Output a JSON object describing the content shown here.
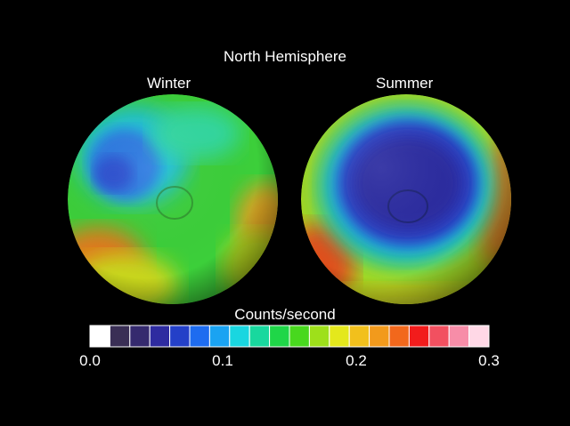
{
  "figure": {
    "title": "North Hemisphere",
    "panels": [
      {
        "label": "Winter"
      },
      {
        "label": "Summer"
      }
    ]
  },
  "colorbar": {
    "title": "Counts/second",
    "ticks": [
      "0.0",
      "0.1",
      "0.2",
      "0.3"
    ],
    "range": [
      0.0,
      0.3
    ],
    "colors": [
      "#ffffff",
      "#3a2f55",
      "#352a6e",
      "#2e2ba0",
      "#2440c8",
      "#1e6cf0",
      "#1aa3f2",
      "#19d6e0",
      "#18d89e",
      "#1fd648",
      "#48d81e",
      "#9ee01a",
      "#e4e81c",
      "#f2c01c",
      "#f29a1c",
      "#f2681c",
      "#f21c1c",
      "#f25060",
      "#f78da8",
      "#ffd8e6"
    ]
  }
}
